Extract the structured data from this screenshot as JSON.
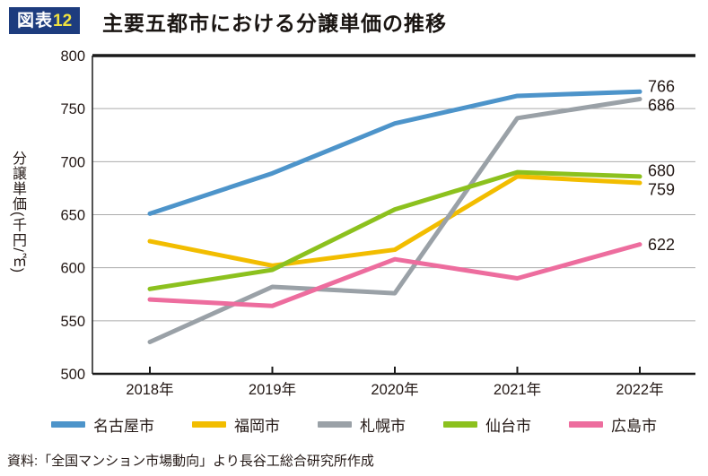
{
  "header": {
    "badge_prefix": "図表",
    "badge_number": "12",
    "title": "主要五都市における分譲単価の推移"
  },
  "source": "資料:「全国マンション市場動向」より長谷工総合研究所作成",
  "colors": {
    "badge_bg": "#1d3c7e",
    "badge_number": "#f0e23f",
    "grid": "#ababab",
    "axis": "#1a1a1a",
    "text": "#231815"
  },
  "chart_data": {
    "type": "line",
    "title": "主要五都市における分譲単価の推移",
    "ylabel": "分譲単価(千円/㎡)",
    "xlabel": "",
    "categories": [
      "2018年",
      "2019年",
      "2020年",
      "2021年",
      "2022年"
    ],
    "ylim": [
      500,
      800
    ],
    "ytick_step": 50,
    "grid": "horizontal",
    "legend_position": "bottom",
    "end_labels": [
      "766",
      "759",
      "686",
      "680",
      "622"
    ],
    "series": [
      {
        "name": "名古屋市",
        "color": "#4d94ca",
        "values": [
          651,
          689,
          736,
          762,
          766
        ]
      },
      {
        "name": "福岡市",
        "color": "#f2bd00",
        "values": [
          625,
          602,
          617,
          686,
          680
        ]
      },
      {
        "name": "札幌市",
        "color": "#9aa1a7",
        "values": [
          530,
          582,
          576,
          741,
          759
        ]
      },
      {
        "name": "仙台市",
        "color": "#8cc11e",
        "values": [
          580,
          598,
          655,
          690,
          686
        ]
      },
      {
        "name": "広島市",
        "color": "#ed6d9e",
        "values": [
          570,
          564,
          608,
          590,
          622
        ]
      }
    ]
  }
}
